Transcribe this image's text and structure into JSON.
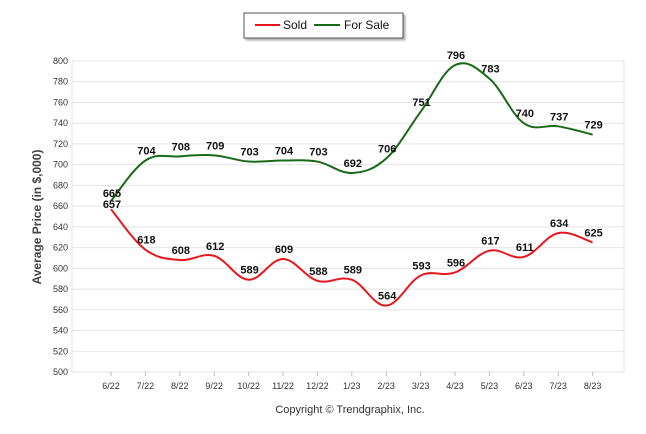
{
  "chart_data": {
    "type": "line",
    "title": "",
    "xlabel": "",
    "ylabel": "Average Price (in $,000)",
    "ylim": [
      500,
      800
    ],
    "y_ticks": [
      500,
      520,
      540,
      560,
      580,
      600,
      620,
      640,
      660,
      680,
      700,
      720,
      740,
      760,
      780,
      800
    ],
    "grid": "horizontal",
    "legend_position": "top-center",
    "categories": [
      "6/22",
      "7/22",
      "8/22",
      "9/22",
      "10/22",
      "11/22",
      "12/22",
      "1/23",
      "2/23",
      "3/23",
      "4/23",
      "5/23",
      "6/23",
      "7/23",
      "8/23"
    ],
    "series": [
      {
        "name": "Sold",
        "color": "#e8171d",
        "values": [
          657,
          618,
          608,
          612,
          589,
          609,
          588,
          589,
          564,
          593,
          596,
          617,
          611,
          634,
          625
        ]
      },
      {
        "name": "For Sale",
        "color": "#186a18",
        "values": [
          665,
          704,
          708,
          709,
          703,
          704,
          703,
          692,
          706,
          751,
          796,
          783,
          740,
          737,
          729
        ]
      }
    ],
    "footer": "Copyright © Trendgraphix, Inc."
  }
}
